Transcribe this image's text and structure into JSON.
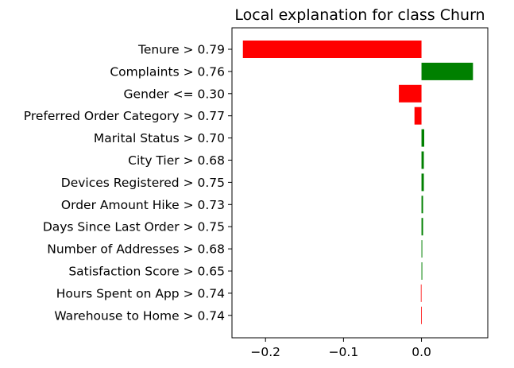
{
  "chart_data": {
    "type": "bar",
    "orientation": "horizontal",
    "title": "Local explanation for class Churn",
    "xlabel": "",
    "ylabel": "",
    "xlim": [
      -0.243,
      0.085
    ],
    "xticks": [
      -0.2,
      -0.1,
      0.0
    ],
    "xtick_labels": [
      "−0.2",
      "−0.1",
      "0.0"
    ],
    "grid": false,
    "legend": "none",
    "colors": {
      "positive": "#008000",
      "negative": "#ff0000"
    },
    "categories": [
      "Tenure > 0.79",
      "Complaints > 0.76",
      "Gender <= 0.30",
      "Preferred Order Category > 0.77",
      "Marital Status > 0.70",
      "City Tier > 0.68",
      "Devices Registered > 0.75",
      "Order Amount Hike > 0.73",
      "Days Since Last Order > 0.75",
      "Number of Addresses > 0.68",
      "Satisfaction Score > 0.65",
      "Hours Spent on App > 0.74",
      "Warehouse to Home > 0.74"
    ],
    "values": [
      -0.229,
      0.066,
      -0.029,
      -0.009,
      0.0035,
      0.003,
      0.003,
      0.002,
      0.002,
      0.001,
      0.001,
      -0.0008,
      -0.0005
    ]
  }
}
